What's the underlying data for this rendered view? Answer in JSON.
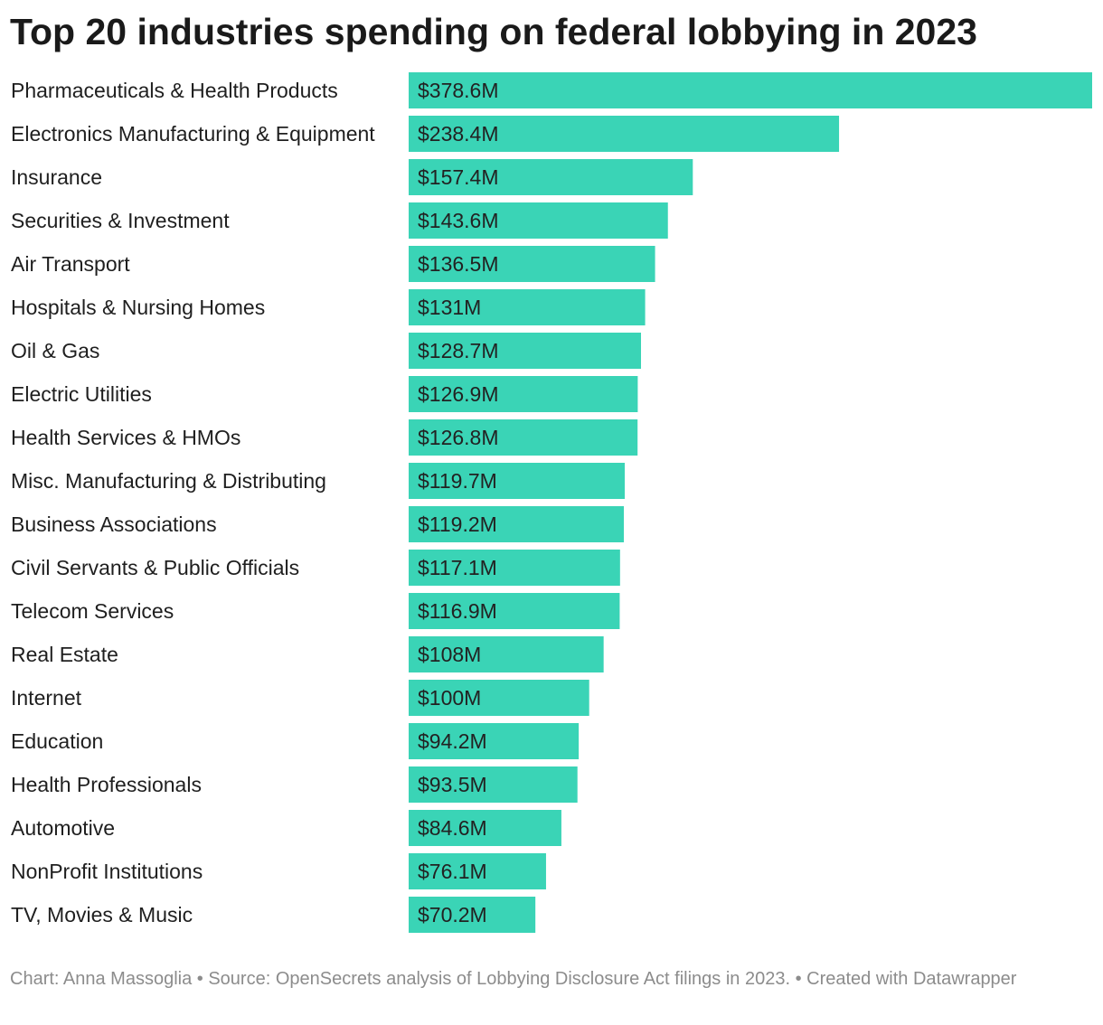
{
  "title": "Top 20 industries spending on federal lobbying in 2023",
  "footer": {
    "credit": "Chart: Anna Massoglia • Source: OpenSecrets analysis of Lobbying Disclosure Act filings in 2023. • Created with Datawrapper"
  },
  "colors": {
    "bar": "#3ad4b6",
    "text": "#1a1a1a",
    "footer": "#8c8c8c"
  },
  "chart_data": {
    "type": "bar",
    "orientation": "horizontal",
    "title": "Top 20 industries spending on federal lobbying in 2023",
    "xlabel": "",
    "ylabel": "",
    "grid": false,
    "legend": "none",
    "xlim": [
      0,
      378.6
    ],
    "unit": "$M",
    "categories": [
      "Pharmaceuticals & Health Products",
      "Electronics Manufacturing & Equipment",
      "Insurance",
      "Securities & Investment",
      "Air Transport",
      "Hospitals & Nursing Homes",
      "Oil & Gas",
      "Electric Utilities",
      "Health Services & HMOs",
      "Misc. Manufacturing & Distributing",
      "Business Associations",
      "Civil Servants & Public Officials",
      "Telecom Services",
      "Real Estate",
      "Internet",
      "Education",
      "Health Professionals",
      "Automotive",
      "NonProfit Institutions",
      "TV, Movies & Music"
    ],
    "values": [
      378.6,
      238.4,
      157.4,
      143.6,
      136.5,
      131,
      128.7,
      126.9,
      126.8,
      119.7,
      119.2,
      117.1,
      116.9,
      108,
      100,
      94.2,
      93.5,
      84.6,
      76.1,
      70.2
    ],
    "value_labels": [
      "$378.6M",
      "$238.4M",
      "$157.4M",
      "$143.6M",
      "$136.5M",
      "$131M",
      "$128.7M",
      "$126.9M",
      "$126.8M",
      "$119.7M",
      "$119.2M",
      "$117.1M",
      "$116.9M",
      "$108M",
      "$100M",
      "$94.2M",
      "$93.5M",
      "$84.6M",
      "$76.1M",
      "$70.2M"
    ]
  }
}
